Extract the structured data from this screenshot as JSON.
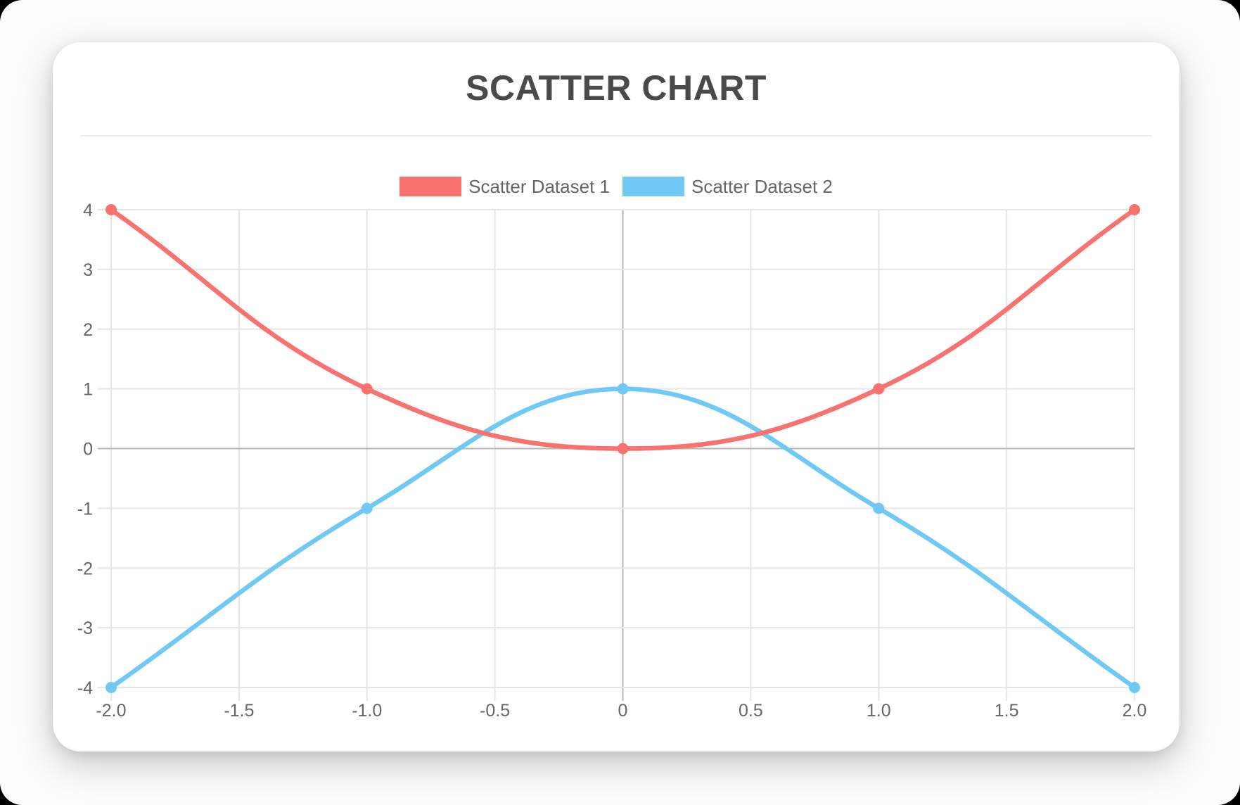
{
  "chart_data": {
    "type": "scatter",
    "title": "SCATTER CHART",
    "xlabel": "",
    "ylabel": "",
    "xlim": [
      -2,
      2
    ],
    "ylim": [
      -4,
      4
    ],
    "grid": true,
    "legend_position": "top",
    "line_tension": 0.4,
    "x_ticks": {
      "values": [
        -2,
        -1.5,
        -1,
        -0.5,
        0,
        0.5,
        1,
        1.5,
        2
      ],
      "labels": [
        "-2.0",
        "-1.5",
        "-1.0",
        "-0.5",
        "0",
        "0.5",
        "1.0",
        "1.5",
        "2.0"
      ]
    },
    "y_ticks": {
      "values": [
        4,
        3,
        2,
        1,
        0,
        -1,
        -2,
        -3,
        -4
      ],
      "labels": [
        "4",
        "3",
        "2",
        "1",
        "0",
        "-1",
        "-2",
        "-3",
        "-4"
      ]
    },
    "series": [
      {
        "name": "Scatter Dataset 1",
        "color": "#F8736F",
        "points": [
          {
            "x": -2,
            "y": 4
          },
          {
            "x": -1,
            "y": 1
          },
          {
            "x": 0,
            "y": 0
          },
          {
            "x": 1,
            "y": 1
          },
          {
            "x": 2,
            "y": 4
          }
        ]
      },
      {
        "name": "Scatter Dataset 2",
        "color": "#70C9F5",
        "points": [
          {
            "x": -2,
            "y": -4
          },
          {
            "x": -1,
            "y": -1
          },
          {
            "x": 0,
            "y": 1
          },
          {
            "x": 1,
            "y": -1
          },
          {
            "x": 2,
            "y": -4
          }
        ]
      }
    ]
  },
  "colors": {
    "title": "#4A4A4A",
    "tick_label": "#666666",
    "grid_line": "#E6E6E6",
    "zero_line": "#B5B5B5",
    "card_background": "#FFFFFF"
  }
}
